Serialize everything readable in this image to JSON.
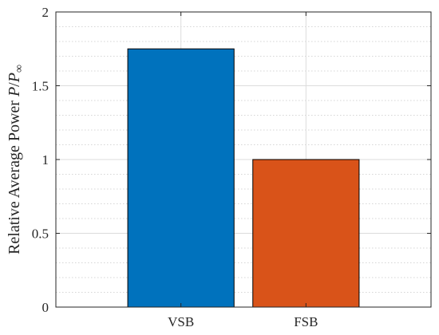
{
  "chart_data": {
    "type": "bar",
    "categories": [
      "VSB",
      "FSB"
    ],
    "values": [
      1.75,
      1.0
    ],
    "colors": [
      "#0072BD",
      "#D95319"
    ],
    "title": "",
    "xlabel": "",
    "ylabel": {
      "text": "Relative Average Power ",
      "math_main": "P",
      "math_sep": "/",
      "math_sub_base": "P",
      "math_sub": "∞"
    },
    "ylim": [
      0,
      2
    ],
    "yticks": [
      0,
      0.5,
      1,
      1.5,
      2
    ],
    "ytick_labels": [
      "0",
      "0.5",
      "1",
      "1.5",
      "2"
    ],
    "grid": true,
    "minor_grid": true,
    "legend": "none"
  }
}
